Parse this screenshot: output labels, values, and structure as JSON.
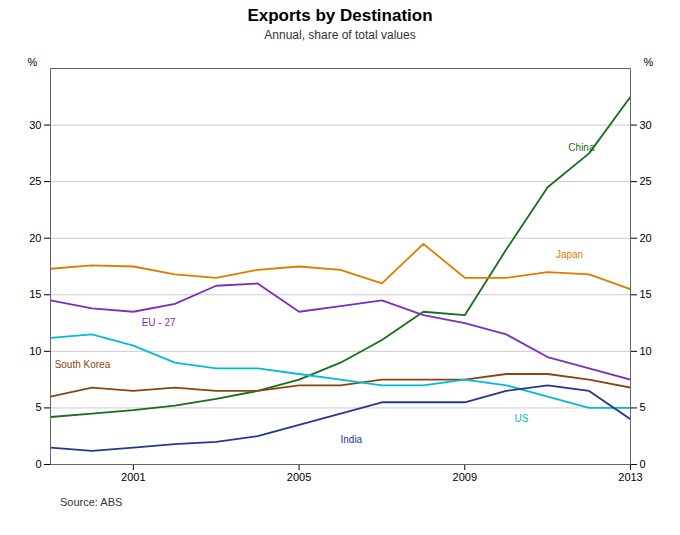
{
  "chart_data": {
    "type": "line",
    "title": "Exports by Destination",
    "subtitle": "Annual, share of total values",
    "source": "Source:   ABS",
    "ylabel": "%",
    "y2label": "%",
    "x": [
      1999,
      2000,
      2001,
      2002,
      2003,
      2004,
      2005,
      2006,
      2007,
      2008,
      2009,
      2010,
      2011,
      2012,
      2013
    ],
    "xlim": [
      1999,
      2013
    ],
    "xticks": [
      2001,
      2005,
      2009,
      2013
    ],
    "ylim": [
      0,
      35
    ],
    "yticks": [
      0,
      5,
      10,
      15,
      20,
      25,
      30
    ],
    "y2lim": [
      0,
      35
    ],
    "y2ticks": [
      0,
      5,
      10,
      15,
      20,
      25,
      30
    ],
    "grid": "y",
    "series": [
      {
        "name": "China",
        "color": "#1a6e1a",
        "values": [
          4.2,
          4.5,
          4.8,
          5.2,
          5.8,
          6.5,
          7.5,
          9.0,
          11.0,
          13.5,
          13.2,
          19.0,
          24.5,
          27.5,
          32.5
        ]
      },
      {
        "name": "Japan",
        "color": "#e07b00",
        "values": [
          17.3,
          17.6,
          17.5,
          16.8,
          16.5,
          17.2,
          17.5,
          17.2,
          16.0,
          19.5,
          16.5,
          16.5,
          17.0,
          16.8,
          15.5
        ]
      },
      {
        "name": "EU - 27",
        "color": "#7b2fbe",
        "values": [
          14.5,
          13.8,
          13.5,
          14.2,
          15.8,
          16.0,
          13.5,
          14.0,
          14.5,
          13.2,
          12.5,
          11.5,
          9.5,
          8.5,
          7.5
        ]
      },
      {
        "name": "South Korea",
        "color": "#8B4513",
        "values": [
          6.0,
          6.8,
          6.5,
          6.8,
          6.5,
          6.5,
          7.0,
          7.0,
          7.5,
          7.5,
          7.5,
          8.0,
          8.0,
          7.5,
          6.8
        ]
      },
      {
        "name": "US",
        "color": "#00bcd4",
        "values": [
          11.2,
          11.5,
          10.5,
          9.0,
          8.5,
          8.5,
          8.0,
          7.5,
          7.0,
          7.0,
          7.5,
          7.0,
          6.0,
          5.0,
          5.0
        ]
      },
      {
        "name": "India",
        "color": "#283593",
        "values": [
          1.5,
          1.2,
          1.5,
          1.8,
          2.0,
          2.5,
          3.5,
          4.5,
          5.5,
          5.5,
          5.5,
          6.5,
          7.0,
          6.5,
          4.0
        ]
      }
    ],
    "annotations": [
      {
        "text": "China",
        "x": 2011.5,
        "y": 28.0,
        "color": "#1a6e1a"
      },
      {
        "text": "Japan",
        "x": 2011.2,
        "y": 18.5,
        "color": "#e07b00"
      },
      {
        "text": "EU - 27",
        "x": 2001.2,
        "y": 12.5,
        "color": "#7b2fbe"
      },
      {
        "text": "South Korea",
        "x": 1999.1,
        "y": 8.8,
        "color": "#8B4513"
      },
      {
        "text": "US",
        "x": 2010.2,
        "y": 4.0,
        "color": "#00bcd4"
      },
      {
        "text": "India",
        "x": 2006.0,
        "y": 2.2,
        "color": "#283593"
      }
    ]
  }
}
